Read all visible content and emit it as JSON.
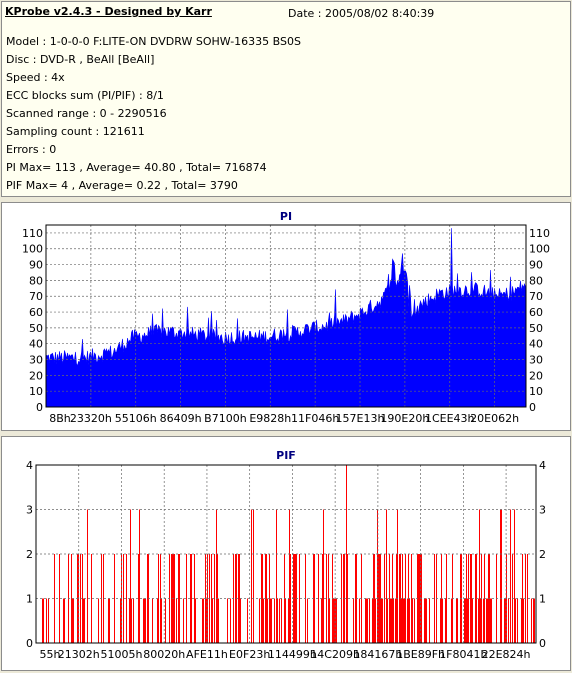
{
  "header": {
    "title": "KProbe v2.4.3 - Designed by Karr",
    "date": "Date : 2005/08/02 8:40:39",
    "lines": [
      "Model : 1-0-0-0 F:LITE-ON DVDRW SOHW-16335 BS0S",
      "Disc : DVD-R , BeAll  [BeAll]",
      "Speed : 4x",
      "ECC blocks sum (PI/PIF) : 8/1",
      "Scanned range : 0 - 2290516",
      "Sampling count : 121611",
      "Errors : 0",
      "PI Max= 113 , Average= 40.80 , Total= 716874",
      "PIF Max= 4 , Average= 0.22 , Total= 3790"
    ]
  },
  "chart_data": [
    {
      "type": "area",
      "title": "PI",
      "ylim": [
        0,
        115
      ],
      "yticks": [
        0,
        10,
        20,
        30,
        40,
        50,
        60,
        70,
        80,
        90,
        100,
        110
      ],
      "xtick_labels": [
        "8Bh",
        "23320h",
        "55106h",
        "86409h",
        "B7100h",
        "E9828h",
        "11F046h",
        "157E13h",
        "190E20h",
        "1CEE43h",
        "20E062h"
      ],
      "grid": true,
      "color": "#0000ff",
      "profile": [
        [
          0,
          31
        ],
        [
          0.08,
          31
        ],
        [
          0.14,
          35
        ],
        [
          0.18,
          44
        ],
        [
          0.24,
          48
        ],
        [
          0.3,
          46
        ],
        [
          0.36,
          44
        ],
        [
          0.44,
          44
        ],
        [
          0.5,
          46
        ],
        [
          0.56,
          50
        ],
        [
          0.62,
          54
        ],
        [
          0.66,
          60
        ],
        [
          0.7,
          68
        ],
        [
          0.72,
          78
        ],
        [
          0.74,
          80
        ],
        [
          0.76,
          55
        ],
        [
          0.78,
          65
        ],
        [
          0.82,
          72
        ],
        [
          0.86,
          74
        ],
        [
          0.9,
          74
        ],
        [
          0.94,
          70
        ],
        [
          0.97,
          72
        ],
        [
          1.0,
          78
        ]
      ],
      "max": 113
    },
    {
      "type": "bar",
      "title": "PIF",
      "ylim": [
        0,
        4
      ],
      "yticks": [
        0,
        1,
        2,
        3,
        4
      ],
      "xtick_labels": [
        "55h",
        "21302h",
        "51005h",
        "80020h",
        "AFE11h",
        "E0F23h",
        "114499h",
        "14C209h",
        "184167h",
        "1BE89Fh",
        "1F8041h",
        "22E824h"
      ],
      "grid": true,
      "color": "#ff0000",
      "max": 4
    }
  ]
}
